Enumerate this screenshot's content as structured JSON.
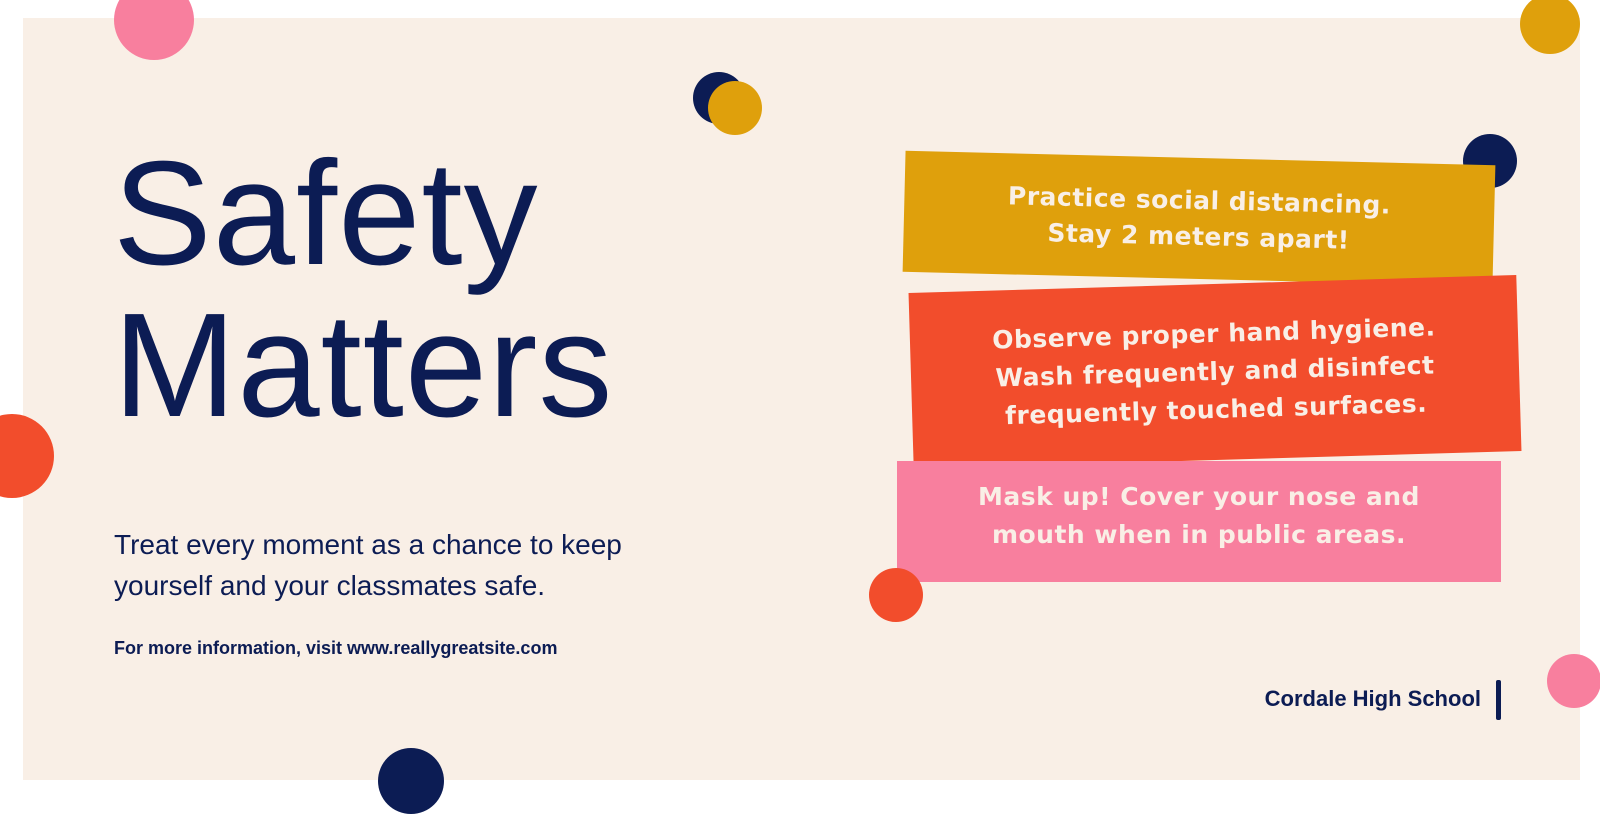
{
  "poster": {
    "title_line1": "Safety",
    "title_line2": "Matters",
    "subtitle": "Treat every moment as a chance to keep yourself and your classmates safe.",
    "info": "For more information, visit www.reallygreatsite.com",
    "school": "Cordale High School"
  },
  "cards": [
    {
      "line1": "Practice social distancing.",
      "line2": "Stay 2 meters apart!"
    },
    {
      "line1": "Observe proper hand hygiene.",
      "line2": "Wash frequently and disinfect",
      "line3": "frequently touched surfaces."
    },
    {
      "line1": "Mask up! Cover your nose and",
      "line2": "mouth when in public areas."
    }
  ],
  "colors": {
    "background": "#f9efe6",
    "navy": "#0c1c54",
    "mustard": "#dfa00c",
    "orange_red": "#f24d2c",
    "pink": "#f87f9e"
  }
}
